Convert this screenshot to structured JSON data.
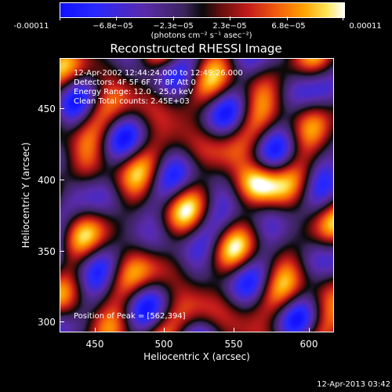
{
  "colorbar": {
    "labels": [
      "-0.00011",
      "−6.8e−05",
      "−2.3e−05",
      "2.3e−05",
      "6.8e−05",
      "0.00011"
    ],
    "units": "(photons cm⁻² s⁻¹ asec⁻²)"
  },
  "chart_data": {
    "type": "heatmap",
    "title": "Reconstructed RHESSI Image",
    "xlabel": "Heliocentric X (arcsec)",
    "ylabel": "Heliocentric Y (arcsec)",
    "xlim": [
      424,
      618
    ],
    "ylim": [
      292,
      486
    ],
    "x_ticks": [
      "450",
      "500",
      "550",
      "600"
    ],
    "y_ticks": [
      "300",
      "350",
      "400",
      "450"
    ],
    "value_range": [
      -0.00011,
      0.00011
    ],
    "peak_position": [
      562,
      394
    ]
  },
  "info_lines": [
    "12-Apr-2002 12:44:24.000 to 12:49:26.000",
    "Detectors: 4F 5F 6F 7F 8F  Att 0",
    "Energy Range: 12.0 - 25.0 keV",
    "Clean     Total counts: 2.45E+03"
  ],
  "peak_text": "Position of Peak = [562,394]",
  "footer": "12-Apr-2013 03:42"
}
